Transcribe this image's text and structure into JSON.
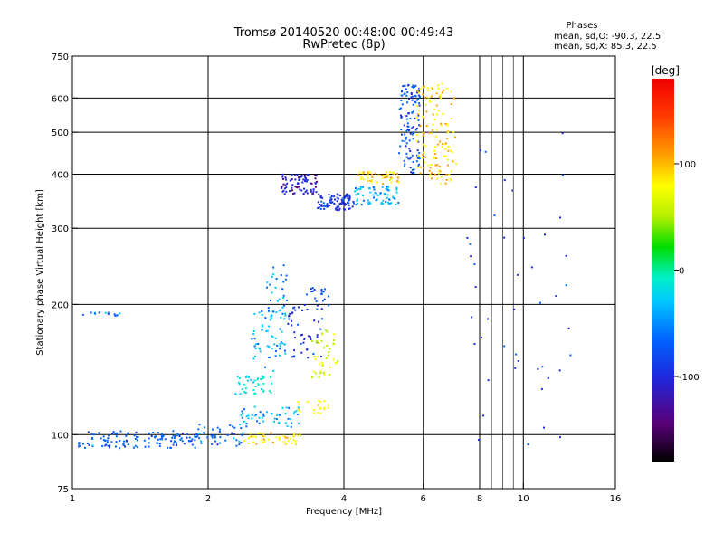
{
  "chart_data": {
    "type": "scatter",
    "title": "Tromsø 20140520 00:48:00-00:49:43",
    "subtitle": "RwPretec (8p)",
    "phases": {
      "heading": "Phases",
      "line_o": "mean, sd,O: -90.3, 22.5",
      "line_x": "mean, sd,X:  85.3, 22.5"
    },
    "xlabel": "Frequency [MHz]",
    "ylabel": "Stationary phase Virtual Height [km]",
    "x_scale": "log",
    "y_scale": "log",
    "xlim": [
      1,
      16
    ],
    "ylim": [
      75,
      750
    ],
    "x_ticks": [
      1,
      2,
      4,
      6,
      8,
      10,
      16
    ],
    "x_tick_labels": [
      "1",
      "2",
      "4",
      "6",
      "8",
      "10",
      "16"
    ],
    "x_grid": [
      2,
      4,
      6,
      8,
      10
    ],
    "x_minor_grid": [
      8.5,
      9,
      9.5
    ],
    "y_ticks": [
      75,
      100,
      200,
      300,
      400,
      500,
      600,
      750
    ],
    "y_tick_labels": [
      "75",
      "100",
      "200",
      "300",
      "400",
      "500",
      "600",
      "750"
    ],
    "y_grid": [
      100,
      200,
      300,
      400,
      500,
      600
    ],
    "grid": true,
    "colorbar": {
      "label": "[deg]",
      "range": [
        -180,
        180
      ],
      "tick_values": [
        100,
        0,
        -100
      ],
      "tick_labels": [
        "100",
        "0",
        "-100"
      ],
      "colors": [
        "#000000",
        "#5a0078",
        "#1e28dc",
        "#0064ff",
        "#00c8ff",
        "#00f0c8",
        "#00dc00",
        "#b4f000",
        "#ffff00",
        "#ffa000",
        "#ff3c00",
        "#f00000"
      ],
      "legend_position": "right"
    },
    "clusters": [
      {
        "x_range": [
          1.03,
          1.9
        ],
        "y_range": [
          93,
          102
        ],
        "phase": -85,
        "n": 130
      },
      {
        "x_range": [
          1.9,
          2.4
        ],
        "y_range": [
          94,
          106
        ],
        "phase": -80,
        "n": 40
      },
      {
        "x_range": [
          1.05,
          1.3
        ],
        "y_range": [
          188,
          192
        ],
        "phase": -75,
        "n": 14
      },
      {
        "x_range": [
          2.4,
          3.2
        ],
        "y_range": [
          95,
          101
        ],
        "phase": 85,
        "n": 45
      },
      {
        "x_range": [
          2.3,
          2.8
        ],
        "y_range": [
          124,
          138
        ],
        "phase": -20,
        "n": 40
      },
      {
        "x_range": [
          2.35,
          3.2
        ],
        "y_range": [
          104,
          116
        ],
        "phase": -60,
        "n": 50
      },
      {
        "x_range": [
          2.5,
          3.0
        ],
        "y_range": [
          140,
          195
        ],
        "phase": -55,
        "n": 60
      },
      {
        "x_range": [
          2.7,
          3.0
        ],
        "y_range": [
          190,
          250
        ],
        "phase": -70,
        "n": 30
      },
      {
        "x_range": [
          3.0,
          3.6
        ],
        "y_range": [
          150,
          200
        ],
        "phase": -110,
        "n": 45
      },
      {
        "x_range": [
          3.3,
          3.7
        ],
        "y_range": [
          195,
          220
        ],
        "phase": -95,
        "n": 20
      },
      {
        "x_range": [
          3.4,
          3.9
        ],
        "y_range": [
          135,
          175
        ],
        "phase": 60,
        "n": 40
      },
      {
        "x_range": [
          3.1,
          3.7
        ],
        "y_range": [
          112,
          120
        ],
        "phase": 85,
        "n": 20
      },
      {
        "x_range": [
          2.9,
          3.5
        ],
        "y_range": [
          360,
          400
        ],
        "phase": -120,
        "n": 80
      },
      {
        "x_range": [
          3.5,
          4.2
        ],
        "y_range": [
          330,
          360
        ],
        "phase": -110,
        "n": 90
      },
      {
        "x_range": [
          4.2,
          5.3
        ],
        "y_range": [
          340,
          375
        ],
        "phase": -60,
        "n": 70
      },
      {
        "x_range": [
          4.3,
          5.3
        ],
        "y_range": [
          380,
          405
        ],
        "phase": 90,
        "n": 50
      },
      {
        "x_range": [
          5.3,
          5.9
        ],
        "y_range": [
          400,
          650
        ],
        "phase": -90,
        "n": 120
      },
      {
        "x_range": [
          5.8,
          7.1
        ],
        "y_range": [
          380,
          650
        ],
        "phase": 95,
        "n": 130
      },
      {
        "x_range": [
          7.5,
          13.0
        ],
        "y_range": [
          90,
          500
        ],
        "phase": -110,
        "n": 45
      }
    ]
  }
}
